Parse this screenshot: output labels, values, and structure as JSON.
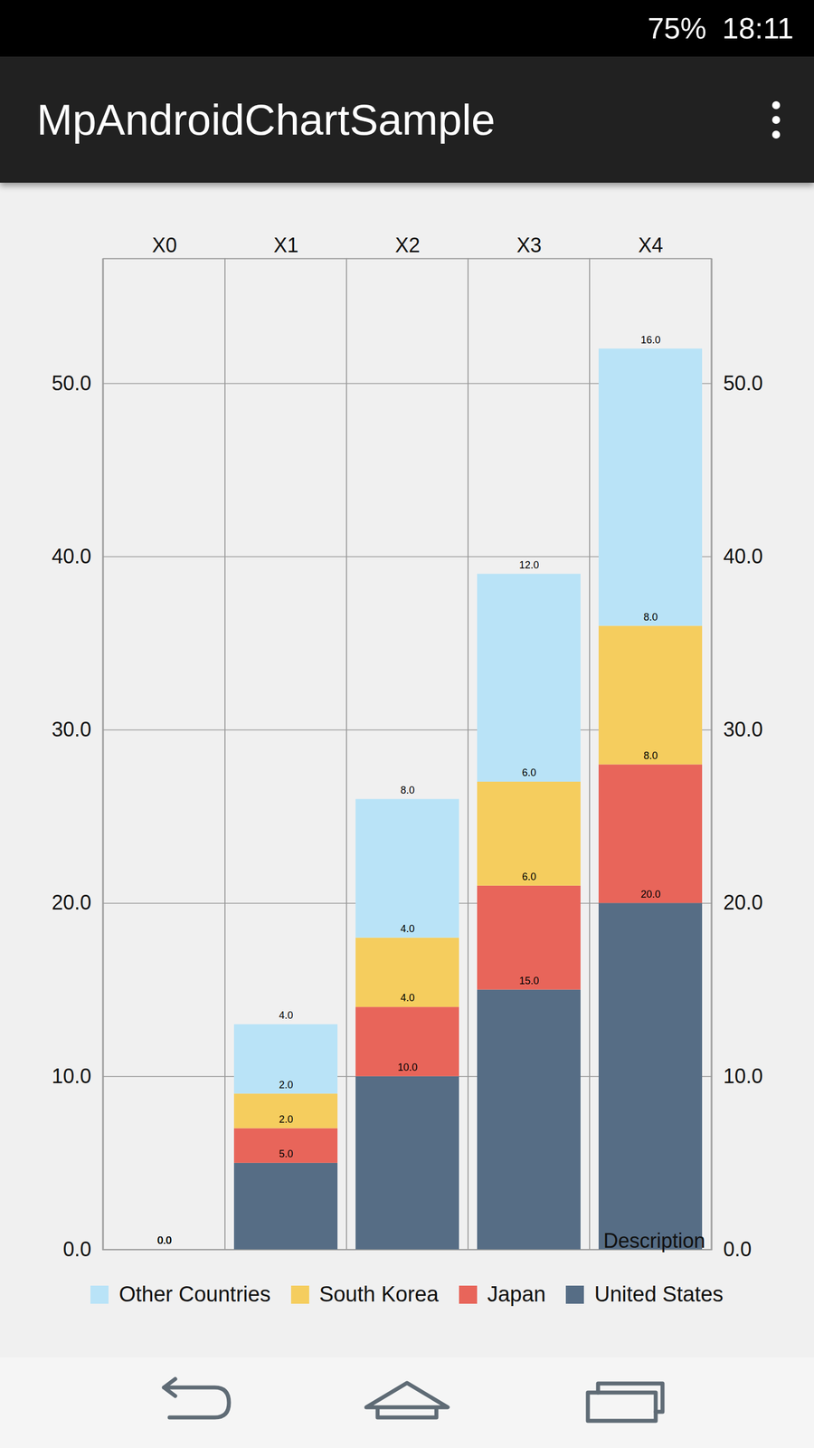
{
  "status_bar": {
    "battery": "75%",
    "time": "18:11"
  },
  "app_bar": {
    "title": "MpAndroidChartSample"
  },
  "chart_data": {
    "type": "bar",
    "stacked": true,
    "data_labels": true,
    "grid": true,
    "legend": "bottom",
    "categories": [
      "X0",
      "X1",
      "X2",
      "X3",
      "X4"
    ],
    "series": [
      {
        "name": "United States",
        "color": "#566d85",
        "values": [
          0,
          5,
          10,
          15,
          20
        ],
        "value_labels": [
          "0.0",
          "5.0",
          "10.0",
          "15.0",
          "20.0"
        ]
      },
      {
        "name": "Japan",
        "color": "#e8655a",
        "values": [
          0,
          2,
          4,
          6,
          8
        ],
        "value_labels": [
          "0.0",
          "2.0",
          "4.0",
          "6.0",
          "8.0"
        ]
      },
      {
        "name": "South Korea",
        "color": "#f5cd5e",
        "values": [
          0,
          2,
          4,
          6,
          8
        ],
        "value_labels": [
          "0.0",
          "2.0",
          "4.0",
          "6.0",
          "8.0"
        ]
      },
      {
        "name": "Other Countries",
        "color": "#b9e3f7",
        "values": [
          0,
          4,
          8,
          12,
          16
        ],
        "value_labels": [
          "0.0",
          "4.0",
          "8.0",
          "12.0",
          "16.0"
        ]
      }
    ],
    "ylim": [
      0,
      57.2
    ],
    "yticks": [
      {
        "value": 0,
        "label": "0.0"
      },
      {
        "value": 10,
        "label": "10.0"
      },
      {
        "value": 20,
        "label": "20.0"
      },
      {
        "value": 30,
        "label": "30.0"
      },
      {
        "value": 40,
        "label": "40.0"
      },
      {
        "value": 50,
        "label": "50.0"
      }
    ],
    "y2lim": [
      0,
      57.2
    ],
    "y2ticks": [
      {
        "value": 0,
        "label": "0.0"
      },
      {
        "value": 10,
        "label": "10.0"
      },
      {
        "value": 20,
        "label": "20.0"
      },
      {
        "value": 30,
        "label": "30.0"
      },
      {
        "value": 40,
        "label": "40.0"
      },
      {
        "value": 50,
        "label": "50.0"
      }
    ],
    "annotations": [
      "Description"
    ]
  }
}
